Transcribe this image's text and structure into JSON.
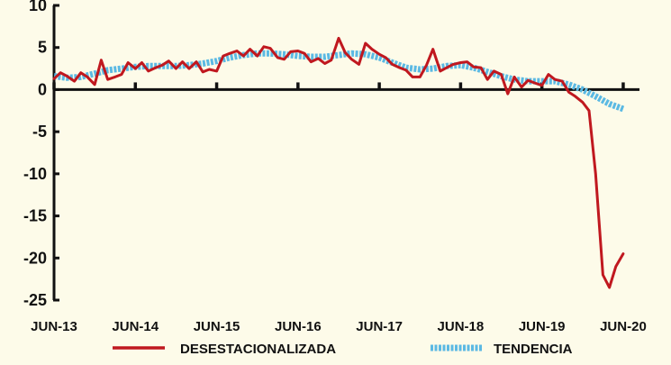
{
  "chart_data": {
    "type": "line",
    "title": "",
    "xlabel": "",
    "ylabel": "",
    "ylim": [
      -25,
      10
    ],
    "yticks": [
      10,
      5,
      0,
      -5,
      -10,
      -15,
      -20,
      -25
    ],
    "xlim": [
      2013.42,
      2020.62
    ],
    "xticks": [
      {
        "x": 2013.42,
        "label": "JUN-13"
      },
      {
        "x": 2014.42,
        "label": "JUN-14"
      },
      {
        "x": 2015.42,
        "label": "JUN-15"
      },
      {
        "x": 2016.42,
        "label": "JUN-16"
      },
      {
        "x": 2017.42,
        "label": "JUN-17"
      },
      {
        "x": 2018.42,
        "label": "JUN-18"
      },
      {
        "x": 2019.42,
        "label": "JUN-19"
      },
      {
        "x": 2020.42,
        "label": "JUN-20"
      }
    ],
    "grid": false,
    "legend_position": "bottom",
    "series": [
      {
        "name": "DESESTACIONALIZADA",
        "color": "#c0181f",
        "style": "solid",
        "points": [
          [
            2013.42,
            1.3
          ],
          [
            2013.5,
            2.0
          ],
          [
            2013.58,
            1.6
          ],
          [
            2013.67,
            1.0
          ],
          [
            2013.75,
            2.0
          ],
          [
            2013.83,
            1.5
          ],
          [
            2013.92,
            0.6
          ],
          [
            2014.0,
            3.5
          ],
          [
            2014.08,
            1.2
          ],
          [
            2014.17,
            1.5
          ],
          [
            2014.25,
            1.8
          ],
          [
            2014.33,
            3.2
          ],
          [
            2014.42,
            2.5
          ],
          [
            2014.5,
            3.2
          ],
          [
            2014.58,
            2.2
          ],
          [
            2014.67,
            2.6
          ],
          [
            2014.75,
            2.9
          ],
          [
            2014.83,
            3.4
          ],
          [
            2014.92,
            2.5
          ],
          [
            2015.0,
            3.3
          ],
          [
            2015.08,
            2.5
          ],
          [
            2015.17,
            3.3
          ],
          [
            2015.25,
            2.1
          ],
          [
            2015.33,
            2.4
          ],
          [
            2015.42,
            2.2
          ],
          [
            2015.5,
            4.0
          ],
          [
            2015.58,
            4.3
          ],
          [
            2015.67,
            4.6
          ],
          [
            2015.75,
            4.0
          ],
          [
            2015.83,
            4.8
          ],
          [
            2015.92,
            4.0
          ],
          [
            2016.0,
            5.1
          ],
          [
            2016.08,
            4.9
          ],
          [
            2016.17,
            3.8
          ],
          [
            2016.25,
            3.6
          ],
          [
            2016.33,
            4.5
          ],
          [
            2016.42,
            4.6
          ],
          [
            2016.5,
            4.3
          ],
          [
            2016.58,
            3.3
          ],
          [
            2016.67,
            3.7
          ],
          [
            2016.75,
            3.1
          ],
          [
            2016.83,
            3.5
          ],
          [
            2016.92,
            6.1
          ],
          [
            2017.0,
            4.4
          ],
          [
            2017.08,
            3.6
          ],
          [
            2017.17,
            3.0
          ],
          [
            2017.25,
            5.5
          ],
          [
            2017.33,
            4.8
          ],
          [
            2017.42,
            4.2
          ],
          [
            2017.5,
            3.8
          ],
          [
            2017.58,
            3.0
          ],
          [
            2017.67,
            2.6
          ],
          [
            2017.75,
            2.3
          ],
          [
            2017.83,
            1.5
          ],
          [
            2017.92,
            1.5
          ],
          [
            2018.0,
            2.9
          ],
          [
            2018.08,
            4.8
          ],
          [
            2018.17,
            2.2
          ],
          [
            2018.25,
            2.6
          ],
          [
            2018.33,
            3.0
          ],
          [
            2018.42,
            3.2
          ],
          [
            2018.5,
            3.3
          ],
          [
            2018.58,
            2.7
          ],
          [
            2018.67,
            2.6
          ],
          [
            2018.75,
            1.2
          ],
          [
            2018.83,
            2.2
          ],
          [
            2018.92,
            1.8
          ],
          [
            2019.0,
            -0.5
          ],
          [
            2019.08,
            1.5
          ],
          [
            2019.17,
            0.3
          ],
          [
            2019.25,
            1.1
          ],
          [
            2019.33,
            0.8
          ],
          [
            2019.42,
            0.5
          ],
          [
            2019.5,
            1.8
          ],
          [
            2019.58,
            1.2
          ],
          [
            2019.67,
            1.0
          ],
          [
            2019.75,
            -0.3
          ],
          [
            2019.83,
            -0.8
          ],
          [
            2019.92,
            -1.5
          ],
          [
            2020.0,
            -2.5
          ],
          [
            2020.08,
            -10.0
          ],
          [
            2020.17,
            -22.0
          ],
          [
            2020.25,
            -23.5
          ],
          [
            2020.33,
            -21.0
          ],
          [
            2020.42,
            -19.5
          ]
        ]
      },
      {
        "name": "TENDENCIA",
        "color": "#5bb9e3",
        "style": "dashed",
        "points": [
          [
            2013.42,
            1.6
          ],
          [
            2013.58,
            1.4
          ],
          [
            2013.75,
            1.5
          ],
          [
            2013.92,
            1.9
          ],
          [
            2014.08,
            2.3
          ],
          [
            2014.25,
            2.5
          ],
          [
            2014.42,
            2.7
          ],
          [
            2014.58,
            2.8
          ],
          [
            2014.75,
            2.8
          ],
          [
            2014.92,
            2.8
          ],
          [
            2015.08,
            2.9
          ],
          [
            2015.25,
            3.1
          ],
          [
            2015.42,
            3.4
          ],
          [
            2015.58,
            3.8
          ],
          [
            2015.75,
            4.1
          ],
          [
            2015.92,
            4.3
          ],
          [
            2016.08,
            4.3
          ],
          [
            2016.25,
            4.2
          ],
          [
            2016.42,
            4.0
          ],
          [
            2016.58,
            3.9
          ],
          [
            2016.75,
            3.9
          ],
          [
            2016.92,
            4.1
          ],
          [
            2017.08,
            4.3
          ],
          [
            2017.25,
            4.2
          ],
          [
            2017.42,
            3.8
          ],
          [
            2017.58,
            3.2
          ],
          [
            2017.75,
            2.6
          ],
          [
            2017.92,
            2.4
          ],
          [
            2018.08,
            2.5
          ],
          [
            2018.25,
            2.8
          ],
          [
            2018.42,
            2.9
          ],
          [
            2018.58,
            2.6
          ],
          [
            2018.75,
            2.1
          ],
          [
            2018.92,
            1.6
          ],
          [
            2019.08,
            1.2
          ],
          [
            2019.25,
            1.0
          ],
          [
            2019.42,
            1.0
          ],
          [
            2019.58,
            1.0
          ],
          [
            2019.75,
            0.6
          ],
          [
            2019.92,
            0.0
          ],
          [
            2020.08,
            -0.8
          ],
          [
            2020.25,
            -1.7
          ],
          [
            2020.42,
            -2.3
          ]
        ]
      }
    ]
  }
}
